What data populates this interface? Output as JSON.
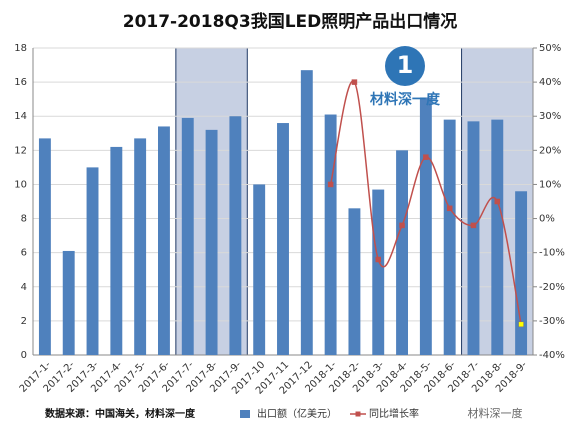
{
  "chart_data": {
    "type": "bar_line",
    "title": "2017-2018Q3我国LED照明产品出口情况",
    "categories": [
      "2017-1-",
      "2017-2-",
      "2017-3-",
      "2017-4-",
      "2017-5-",
      "2017-6-",
      "2017-7-",
      "2017-8-",
      "2017-9-",
      "2017-10",
      "2017-11",
      "2017-12",
      "2018-1-",
      "2018-2-",
      "2018-3-",
      "2018-4-",
      "2018-5-",
      "2018-6-",
      "2018-7-",
      "2018-8-",
      "2018-9-"
    ],
    "series": [
      {
        "name": "出口额（亿美元）",
        "color": "#4f81bd",
        "axis": "y",
        "values": [
          12.7,
          6.1,
          11.0,
          12.2,
          12.7,
          13.4,
          13.9,
          13.2,
          14.0,
          10.0,
          13.6,
          16.7,
          14.1,
          8.6,
          9.7,
          12.0,
          15.1,
          13.8,
          13.7,
          13.8,
          9.6
        ]
      },
      {
        "name": "同比增长率",
        "color": "#c0504d",
        "axis": "y2",
        "last_marker_color": "#ffff00",
        "values": [
          null,
          null,
          null,
          null,
          null,
          null,
          null,
          null,
          null,
          null,
          null,
          null,
          10,
          40,
          -12,
          -2,
          18,
          3,
          -2,
          5,
          -31
        ]
      }
    ],
    "ylim": [
      0,
      18
    ],
    "yticks": [
      0,
      2,
      4,
      6,
      8,
      10,
      12,
      14,
      16,
      18
    ],
    "y2lim": [
      -40,
      50
    ],
    "y2ticks": [
      {
        "value": -40,
        "label": "-40%"
      },
      {
        "value": -30,
        "label": "-30%"
      },
      {
        "value": -20,
        "label": "-20%"
      },
      {
        "value": -10,
        "label": "-10%"
      },
      {
        "value": 0,
        "label": "0%"
      },
      {
        "value": 10,
        "label": "10%"
      },
      {
        "value": 20,
        "label": "20%"
      },
      {
        "value": 30,
        "label": "30%"
      },
      {
        "value": 40,
        "label": "40%"
      },
      {
        "value": 50,
        "label": "50%"
      }
    ],
    "grid": true,
    "source_note": "数据来源：中国海关，材料深一度",
    "watermark": "材料深一度",
    "footer_watermark": "材料深一度"
  }
}
